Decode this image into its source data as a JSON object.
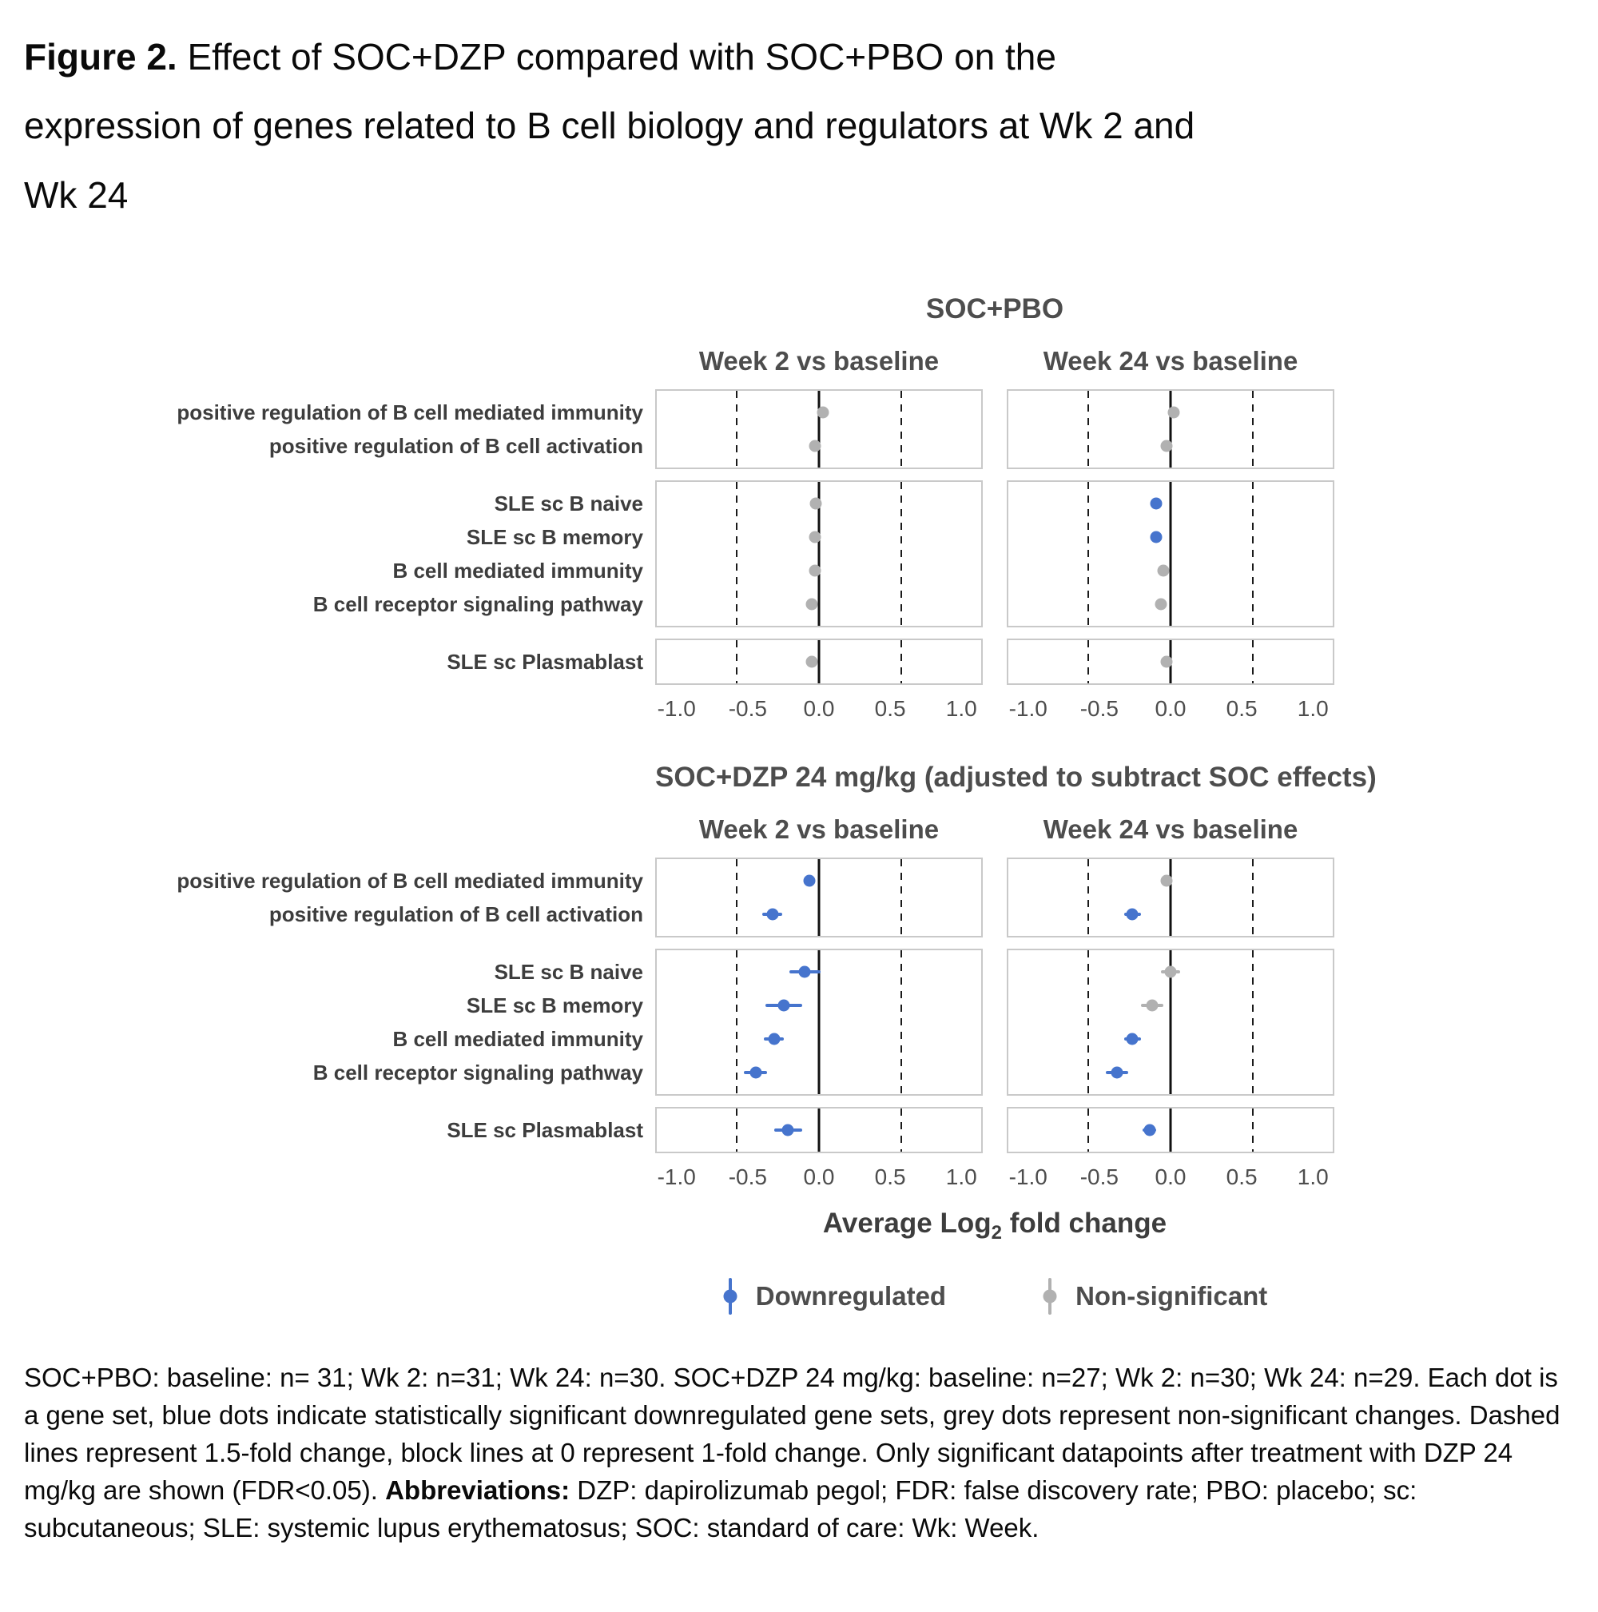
{
  "title": {
    "label": "Figure 2.",
    "text": " Effect of SOC+DZP compared with SOC+PBO on the expression of genes related to B cell biology and regulators at Wk 2 and Wk 24"
  },
  "colors": {
    "downregulated": "#4674cd",
    "nonsignificant": "#b1b1b1",
    "panel_border": "#c9c9c9",
    "heading_text": "#4d4d4d"
  },
  "chart_data": {
    "type": "scatter",
    "subtype": "forest-dot-plot",
    "x_axis": {
      "label_parts": [
        "Average Log",
        "2",
        " fold change"
      ],
      "range": [
        -1.15,
        1.15
      ],
      "ticks": [
        -1.0,
        -0.5,
        0.0,
        0.5,
        1.0
      ],
      "tick_labels": [
        "-1.0",
        "-0.5",
        "0.0",
        "0.5",
        "1.0"
      ],
      "dashed_lines": [
        -0.585,
        0.585
      ],
      "solid_line": 0
    },
    "row_groups": [
      [
        "positive regulation of B cell mediated immunity",
        "positive regulation of B cell activation"
      ],
      [
        "SLE sc B naive",
        "SLE sc B memory",
        "B cell mediated immunity",
        "B cell receptor signaling pathway"
      ],
      [
        "SLE sc Plasmablast"
      ]
    ],
    "sections": [
      {
        "title": "SOC+PBO",
        "panels": [
          {
            "header": "Week 2 vs baseline",
            "points": [
              {
                "x": 0.03,
                "lo": 0.01,
                "hi": 0.05,
                "sig": "ns"
              },
              {
                "x": -0.03,
                "lo": -0.05,
                "hi": -0.01,
                "sig": "ns"
              },
              {
                "x": -0.02,
                "lo": -0.04,
                "hi": 0.0,
                "sig": "ns"
              },
              {
                "x": -0.03,
                "lo": -0.05,
                "hi": -0.01,
                "sig": "ns"
              },
              {
                "x": -0.03,
                "lo": -0.05,
                "hi": -0.01,
                "sig": "ns"
              },
              {
                "x": -0.05,
                "lo": -0.07,
                "hi": -0.03,
                "sig": "ns"
              },
              {
                "x": -0.05,
                "lo": -0.08,
                "hi": -0.02,
                "sig": "ns"
              }
            ]
          },
          {
            "header": "Week 24 vs baseline",
            "points": [
              {
                "x": 0.02,
                "lo": 0.0,
                "hi": 0.04,
                "sig": "ns"
              },
              {
                "x": -0.03,
                "lo": -0.05,
                "hi": -0.01,
                "sig": "ns"
              },
              {
                "x": -0.1,
                "lo": -0.13,
                "hi": -0.07,
                "sig": "down"
              },
              {
                "x": -0.1,
                "lo": -0.13,
                "hi": -0.07,
                "sig": "down"
              },
              {
                "x": -0.05,
                "lo": -0.07,
                "hi": -0.03,
                "sig": "ns"
              },
              {
                "x": -0.07,
                "lo": -0.09,
                "hi": -0.05,
                "sig": "ns"
              },
              {
                "x": -0.03,
                "lo": -0.06,
                "hi": 0.0,
                "sig": "ns"
              }
            ]
          }
        ]
      },
      {
        "title": "SOC+DZP 24 mg/kg (adjusted to subtract SOC effects)",
        "panels": [
          {
            "header": "Week 2 vs baseline",
            "points": [
              {
                "x": -0.07,
                "lo": -0.11,
                "hi": -0.03,
                "sig": "down"
              },
              {
                "x": -0.33,
                "lo": -0.4,
                "hi": -0.26,
                "sig": "down"
              },
              {
                "x": -0.1,
                "lo": -0.21,
                "hi": 0.01,
                "sig": "down"
              },
              {
                "x": -0.25,
                "lo": -0.38,
                "hi": -0.12,
                "sig": "down"
              },
              {
                "x": -0.32,
                "lo": -0.39,
                "hi": -0.25,
                "sig": "down"
              },
              {
                "x": -0.45,
                "lo": -0.53,
                "hi": -0.37,
                "sig": "down"
              },
              {
                "x": -0.22,
                "lo": -0.32,
                "hi": -0.12,
                "sig": "down"
              }
            ]
          },
          {
            "header": "Week 24 vs baseline",
            "points": [
              {
                "x": -0.03,
                "lo": -0.06,
                "hi": 0.0,
                "sig": "ns"
              },
              {
                "x": -0.27,
                "lo": -0.33,
                "hi": -0.21,
                "sig": "down"
              },
              {
                "x": 0.0,
                "lo": -0.07,
                "hi": 0.07,
                "sig": "ns"
              },
              {
                "x": -0.13,
                "lo": -0.21,
                "hi": -0.05,
                "sig": "ns"
              },
              {
                "x": -0.27,
                "lo": -0.33,
                "hi": -0.21,
                "sig": "down"
              },
              {
                "x": -0.38,
                "lo": -0.46,
                "hi": -0.3,
                "sig": "down"
              },
              {
                "x": -0.15,
                "lo": -0.2,
                "hi": -0.1,
                "sig": "down"
              }
            ]
          }
        ]
      }
    ],
    "legend": [
      {
        "label": "Downregulated",
        "sig": "down"
      },
      {
        "label": "Non-significant",
        "sig": "ns"
      }
    ]
  },
  "footer": {
    "text1": "SOC+PBO: baseline: n= 31; Wk 2: n=31; Wk 24: n=30. SOC+DZP 24 mg/kg: baseline: n=27; Wk 2: n=30; Wk 24: n=29. Each dot is a gene set, blue dots indicate statistically significant downregulated gene sets, grey dots represent non-significant changes. Dashed lines represent 1.5-fold change, block lines at 0 represent 1-fold change. Only significant datapoints after treatment with DZP 24 mg/kg are shown (FDR<0.05). ",
    "bold": "Abbreviations:",
    "text2": " DZP: dapirolizumab pegol; FDR: false discovery rate; PBO: placebo; sc: subcutaneous; SLE: systemic lupus erythematosus; SOC: standard of care: Wk: Week."
  }
}
